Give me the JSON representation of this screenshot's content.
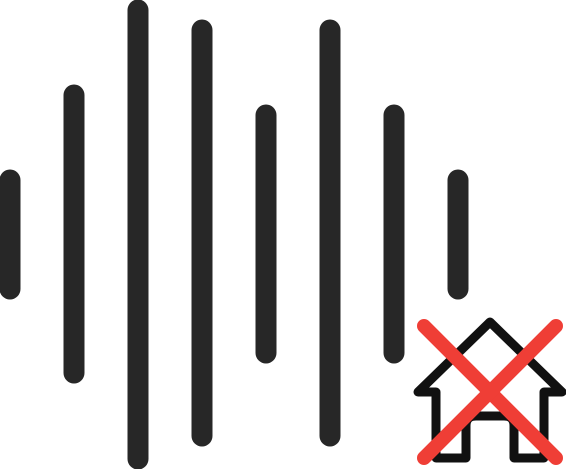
{
  "icon": {
    "name": "audio-waveform-no-home-icon",
    "waveform_bars": 8,
    "colors": {
      "waveform": "#272727",
      "house_outline": "#111111",
      "cross": "#ef3e36",
      "background": "#ffffff"
    }
  }
}
